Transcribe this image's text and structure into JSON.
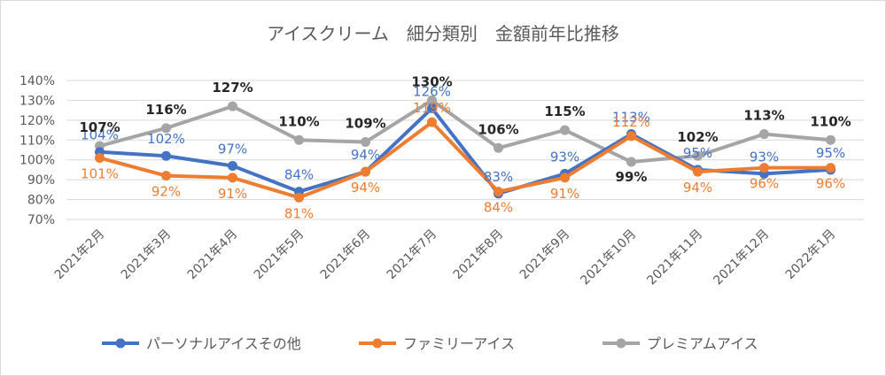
{
  "chart_data": {
    "type": "line",
    "title": "アイスクリーム　細分類別　金額前年比推移",
    "xlabel": "",
    "ylabel": "",
    "ylim": [
      70,
      140
    ],
    "yticks": [
      "70%",
      "80%",
      "90%",
      "100%",
      "110%",
      "120%",
      "130%",
      "140%"
    ],
    "grid": true,
    "legend_position": "bottom",
    "categories": [
      "2021年2月",
      "2021年3月",
      "2021年4月",
      "2021年5月",
      "2021年6月",
      "2021年7月",
      "2021年8月",
      "2021年9月",
      "2021年10月",
      "2021年11月",
      "2021年12月",
      "2022年1月"
    ],
    "series": [
      {
        "name": "パーソナルアイスその他",
        "color": "#4472c4",
        "values": [
          104,
          102,
          97,
          84,
          94,
          126,
          83,
          93,
          113,
          95,
          93,
          95
        ],
        "labels": [
          "104%",
          "102%",
          "97%",
          "84%",
          "94%",
          "126%",
          "83%",
          "93%",
          "113%",
          "95%",
          "93%",
          "95%"
        ]
      },
      {
        "name": "ファミリーアイス",
        "color": "#ed7d31",
        "values": [
          101,
          92,
          91,
          81,
          94,
          119,
          84,
          91,
          112,
          94,
          96,
          96
        ],
        "labels": [
          "101%",
          "92%",
          "91%",
          "81%",
          "94%",
          "119%",
          "84%",
          "91%",
          "112%",
          "94%",
          "96%",
          "96%"
        ]
      },
      {
        "name": "プレミアムアイス",
        "color": "#a5a5a5",
        "values": [
          107,
          116,
          127,
          110,
          109,
          130,
          106,
          115,
          99,
          102,
          113,
          110
        ],
        "labels": [
          "107%",
          "116%",
          "127%",
          "110%",
          "109%",
          "130%",
          "106%",
          "115%",
          "99%",
          "102%",
          "113%",
          "110%"
        ]
      }
    ]
  }
}
